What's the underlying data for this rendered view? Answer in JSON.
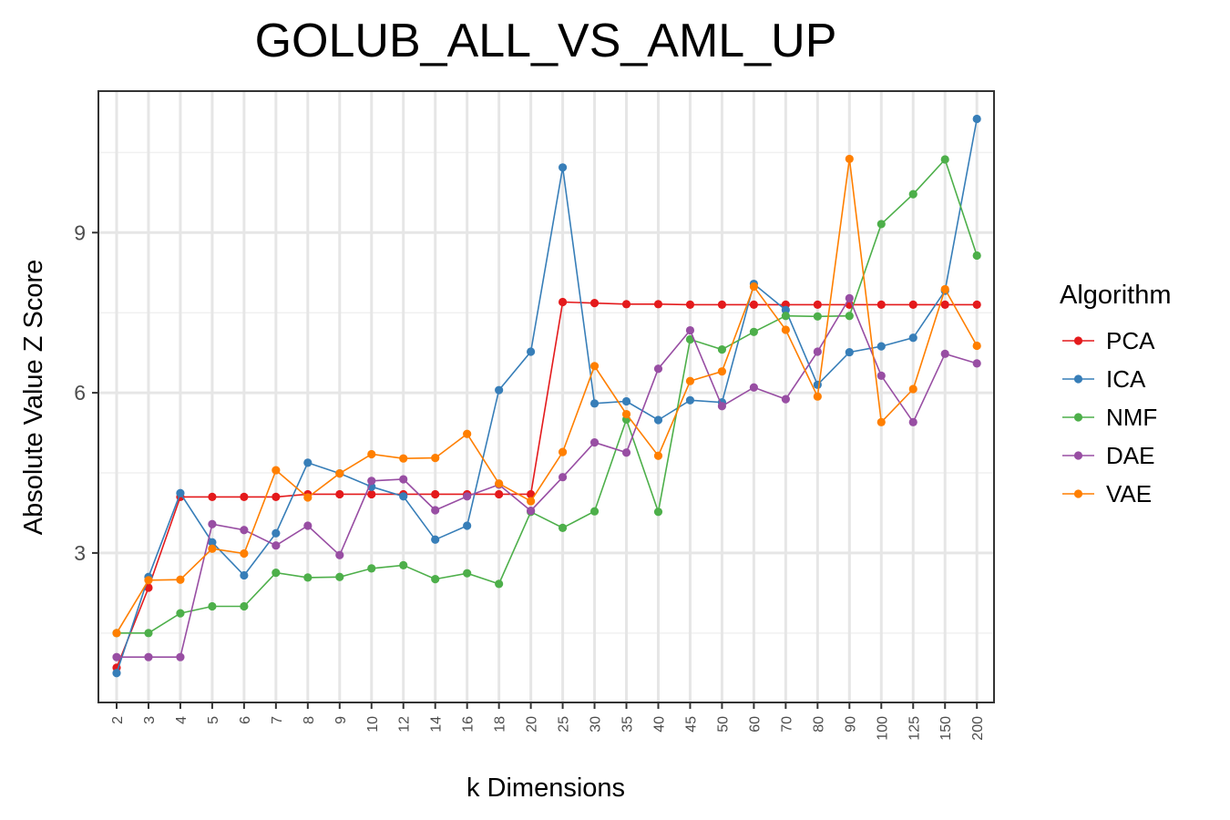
{
  "chart_data": {
    "type": "line",
    "title": "GOLUB_ALL_VS_AML_UP",
    "xlabel": "k Dimensions",
    "ylabel": "Absolute Value Z Score",
    "categories": [
      "2",
      "3",
      "4",
      "5",
      "6",
      "7",
      "8",
      "9",
      "10",
      "12",
      "14",
      "16",
      "18",
      "20",
      "25",
      "30",
      "35",
      "40",
      "45",
      "50",
      "60",
      "70",
      "80",
      "90",
      "100",
      "125",
      "150",
      "200"
    ],
    "ylim": [
      0.2,
      11.65
    ],
    "yticks": [
      3,
      6,
      9
    ],
    "grid": true,
    "legend": {
      "title": "Algorithm",
      "position": "right"
    },
    "series": [
      {
        "name": "PCA",
        "color": "#e41a1c",
        "values": [
          0.85,
          2.35,
          4.05,
          4.05,
          4.05,
          4.05,
          4.1,
          4.1,
          4.1,
          4.1,
          4.1,
          4.1,
          4.1,
          4.1,
          7.7,
          7.68,
          7.66,
          7.66,
          7.65,
          7.65,
          7.65,
          7.65,
          7.65,
          7.65,
          7.65,
          7.65,
          7.65,
          7.65
        ]
      },
      {
        "name": "ICA",
        "color": "#377eb8",
        "values": [
          0.75,
          2.55,
          4.12,
          3.2,
          2.58,
          3.37,
          4.69,
          4.49,
          4.24,
          4.06,
          3.25,
          3.51,
          6.05,
          6.77,
          10.22,
          5.8,
          5.84,
          5.49,
          5.86,
          5.82,
          8.04,
          7.55,
          6.15,
          6.76,
          6.87,
          7.03,
          7.91,
          11.13
        ]
      },
      {
        "name": "NMF",
        "color": "#4daf4a",
        "values": [
          1.5,
          1.5,
          1.87,
          2.0,
          2.0,
          2.63,
          2.54,
          2.55,
          2.71,
          2.77,
          2.51,
          2.62,
          2.42,
          3.77,
          3.47,
          3.78,
          5.5,
          3.77,
          7.0,
          6.81,
          7.14,
          7.44,
          7.43,
          7.44,
          9.16,
          9.72,
          10.37,
          8.57
        ]
      },
      {
        "name": "DAE",
        "color": "#984ea3",
        "values": [
          1.05,
          1.05,
          1.05,
          3.54,
          3.43,
          3.14,
          3.51,
          2.96,
          4.35,
          4.38,
          3.8,
          4.06,
          4.28,
          3.79,
          4.42,
          5.07,
          4.88,
          6.45,
          7.17,
          5.75,
          6.1,
          5.88,
          6.77,
          7.77,
          6.32,
          5.45,
          6.73,
          6.55
        ]
      },
      {
        "name": "VAE",
        "color": "#ff7f00",
        "values": [
          1.5,
          2.49,
          2.5,
          3.08,
          2.99,
          4.55,
          4.04,
          4.49,
          4.85,
          4.77,
          4.78,
          5.23,
          4.3,
          3.97,
          4.89,
          6.5,
          5.6,
          4.82,
          6.22,
          6.4,
          7.99,
          7.18,
          5.93,
          10.38,
          5.45,
          6.07,
          7.94,
          6.88
        ]
      }
    ]
  }
}
